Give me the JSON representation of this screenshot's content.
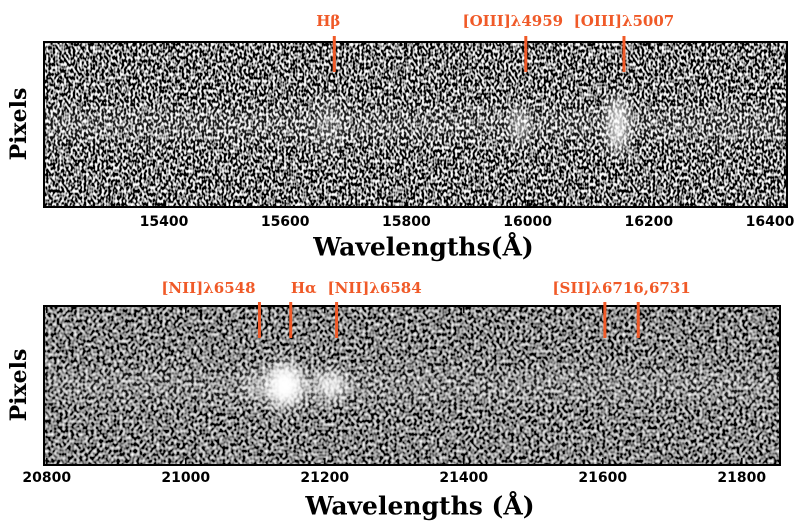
{
  "chart_data": [
    {
      "type": "image",
      "xlabel": "Wavelengths(Å)",
      "ylabel": "Pixels",
      "xlim": [
        15202,
        16428
      ],
      "xticks": [
        15400,
        15600,
        15800,
        16000,
        16200,
        16400
      ],
      "line_color": "#f05a28",
      "lines": [
        {
          "label": "Hβ",
          "wavelengths": [
            15681
          ]
        },
        {
          "label": "[OIII]λ4959",
          "wavelengths": [
            15997
          ]
        },
        {
          "label": "[OIII]λ5007",
          "wavelengths": [
            16159
          ]
        }
      ]
    },
    {
      "type": "image",
      "xlabel": "Wavelengths (Å)",
      "ylabel": "Pixels",
      "xlim": [
        20796,
        21855
      ],
      "xticks": [
        20800,
        21000,
        21200,
        21400,
        21600,
        21800
      ],
      "line_color": "#f05a28",
      "lines": [
        {
          "label": "[NII]λ6548",
          "wavelengths": [
            21106
          ]
        },
        {
          "label": "Hα",
          "wavelengths": [
            21151
          ]
        },
        {
          "label": "[NII]λ6584",
          "wavelengths": [
            21217
          ]
        },
        {
          "label": "[SII]λ6716,6731",
          "wavelengths": [
            21603,
            21651
          ]
        }
      ]
    }
  ]
}
